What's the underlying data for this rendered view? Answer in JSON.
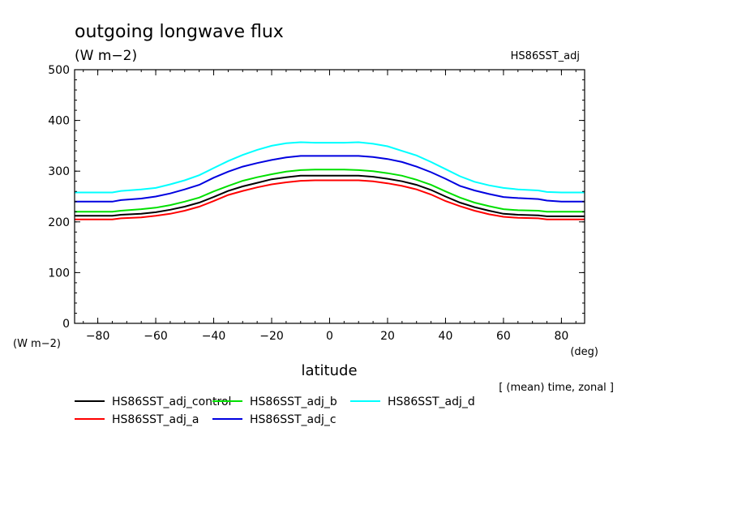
{
  "chart_data": {
    "type": "line",
    "title": "outgoing longwave flux",
    "subtitle": "(W m−2)",
    "dataset_label": "HS86SST_adj",
    "xlabel": "latitude",
    "x_unit": "(deg)",
    "y_unit": "(W m−2)",
    "note": "[ (mean) time, zonal ]",
    "xlim": [
      -88,
      88
    ],
    "ylim": [
      0,
      500
    ],
    "x_ticks": [
      -80,
      -60,
      -40,
      -20,
      0,
      20,
      40,
      60,
      80
    ],
    "x_tick_labels": [
      "−80",
      "−60",
      "−40",
      "−20",
      "0",
      "20",
      "40",
      "60",
      "80"
    ],
    "y_ticks": [
      0,
      100,
      200,
      300,
      400,
      500
    ],
    "y_tick_labels": [
      "0",
      "100",
      "200",
      "300",
      "400",
      "500"
    ],
    "grid": false,
    "legend_position": "bottom-left",
    "x": [
      -88,
      -80,
      -75,
      -72,
      -65,
      -60,
      -55,
      -50,
      -45,
      -40,
      -35,
      -30,
      -25,
      -20,
      -15,
      -10,
      -5,
      0,
      5,
      10,
      15,
      20,
      25,
      30,
      35,
      40,
      45,
      50,
      55,
      60,
      65,
      72,
      75,
      80,
      88
    ],
    "series": [
      {
        "name": "HS86SST_adj_control",
        "color": "#000000",
        "values": [
          212,
          212,
          212,
          214,
          216,
          219,
          224,
          230,
          238,
          249,
          261,
          270,
          277,
          284,
          288,
          291,
          291,
          291,
          291,
          291,
          289,
          285,
          280,
          273,
          263,
          250,
          238,
          229,
          222,
          216,
          214,
          213,
          211,
          211,
          211
        ]
      },
      {
        "name": "HS86SST_adj_a",
        "color": "#ff0000",
        "values": [
          205,
          205,
          205,
          207,
          209,
          212,
          216,
          222,
          230,
          241,
          253,
          261,
          268,
          274,
          278,
          281,
          282,
          282,
          282,
          282,
          280,
          276,
          271,
          264,
          254,
          241,
          231,
          222,
          215,
          210,
          208,
          207,
          205,
          205,
          205
        ]
      },
      {
        "name": "HS86SST_adj_b",
        "color": "#00e000",
        "values": [
          220,
          220,
          220,
          222,
          225,
          228,
          233,
          240,
          248,
          260,
          271,
          281,
          288,
          294,
          299,
          302,
          303,
          303,
          303,
          302,
          300,
          296,
          291,
          283,
          273,
          260,
          248,
          238,
          231,
          225,
          223,
          222,
          220,
          220,
          220
        ]
      },
      {
        "name": "HS86SST_adj_c",
        "color": "#0000e0",
        "values": [
          240,
          240,
          240,
          243,
          246,
          250,
          256,
          264,
          273,
          287,
          299,
          309,
          316,
          322,
          327,
          330,
          330,
          330,
          330,
          330,
          328,
          324,
          318,
          309,
          298,
          285,
          271,
          262,
          255,
          249,
          247,
          245,
          242,
          240,
          240
        ]
      },
      {
        "name": "HS86SST_adj_d",
        "color": "#00ffff",
        "values": [
          258,
          258,
          258,
          261,
          264,
          267,
          274,
          282,
          292,
          306,
          320,
          332,
          342,
          350,
          355,
          357,
          356,
          356,
          356,
          357,
          354,
          349,
          340,
          331,
          318,
          304,
          290,
          279,
          272,
          267,
          264,
          262,
          259,
          258,
          258
        ]
      }
    ]
  }
}
